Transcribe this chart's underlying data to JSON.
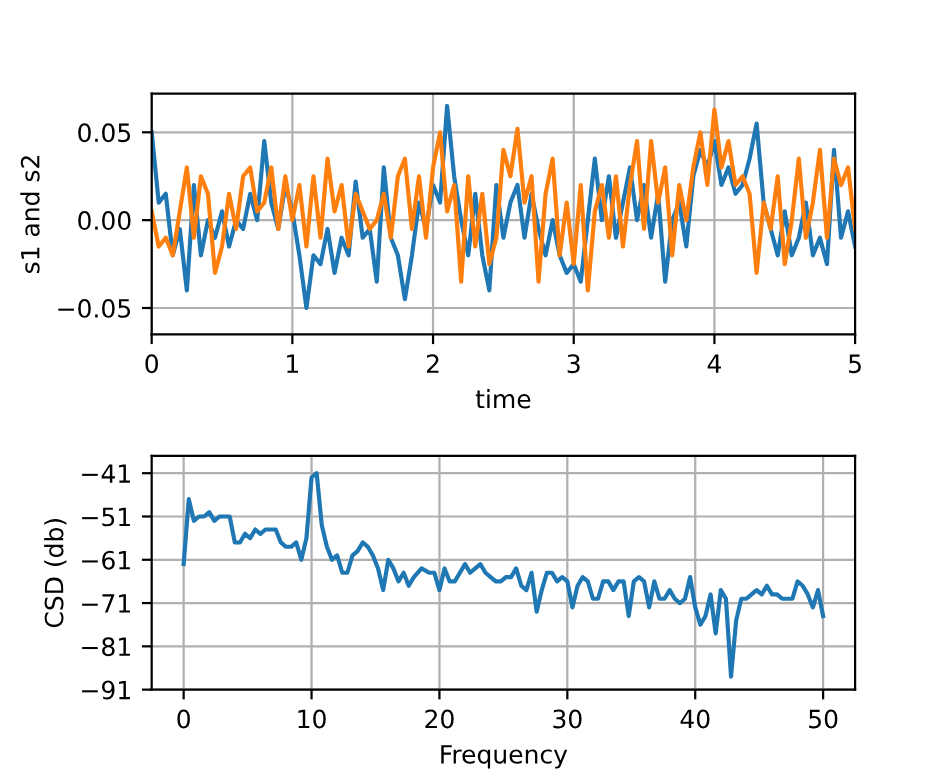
{
  "chart_data": [
    {
      "type": "line",
      "xlabel": "time",
      "ylabel": "s1 and s2",
      "grid": true,
      "xlim": [
        0,
        5
      ],
      "xticks": [
        0,
        1,
        2,
        3,
        4,
        5
      ],
      "ylim": [
        -0.065,
        0.072
      ],
      "yticks": [
        {
          "value": -0.05,
          "label": "−0.05"
        },
        {
          "value": 0,
          "label": "0.00"
        },
        {
          "value": 0.05,
          "label": "0.05"
        }
      ],
      "x": [
        0,
        0.05,
        0.1,
        0.15,
        0.2,
        0.25,
        0.3,
        0.35,
        0.4,
        0.45,
        0.5,
        0.55,
        0.6,
        0.65,
        0.7,
        0.75,
        0.8,
        0.85,
        0.9,
        0.95,
        1.0,
        1.05,
        1.1,
        1.15,
        1.2,
        1.25,
        1.3,
        1.35,
        1.4,
        1.45,
        1.5,
        1.55,
        1.6,
        1.65,
        1.7,
        1.75,
        1.8,
        1.85,
        1.9,
        1.95,
        2.0,
        2.05,
        2.1,
        2.15,
        2.2,
        2.25,
        2.3,
        2.35,
        2.4,
        2.45,
        2.5,
        2.55,
        2.6,
        2.65,
        2.7,
        2.75,
        2.8,
        2.85,
        2.9,
        2.95,
        3.0,
        3.05,
        3.1,
        3.15,
        3.2,
        3.25,
        3.3,
        3.35,
        3.4,
        3.45,
        3.5,
        3.55,
        3.6,
        3.65,
        3.7,
        3.75,
        3.8,
        3.85,
        3.9,
        3.95,
        4.0,
        4.05,
        4.1,
        4.15,
        4.2,
        4.25,
        4.3,
        4.35,
        4.4,
        4.45,
        4.5,
        4.55,
        4.6,
        4.65,
        4.7,
        4.75,
        4.8,
        4.85,
        4.9,
        4.95,
        5.0
      ],
      "series": [
        {
          "color": "#1f77b4",
          "values": [
            0.05,
            0.01,
            0.015,
            -0.02,
            -0.005,
            -0.04,
            0.02,
            -0.02,
            0.0,
            -0.01,
            0.005,
            -0.015,
            0.0,
            -0.005,
            0.015,
            0.0,
            0.045,
            0.01,
            -0.005,
            0.02,
            0.005,
            -0.02,
            -0.05,
            -0.02,
            -0.025,
            -0.005,
            -0.03,
            -0.01,
            -0.02,
            0.022,
            -0.01,
            -0.005,
            -0.035,
            0.03,
            -0.01,
            -0.02,
            -0.045,
            -0.02,
            0.01,
            -0.005,
            0.02,
            0.01,
            0.065,
            0.025,
            0.0,
            -0.02,
            0.015,
            -0.02,
            -0.04,
            0.02,
            -0.01,
            0.01,
            0.02,
            -0.01,
            0.015,
            -0.005,
            -0.02,
            0.0,
            -0.02,
            -0.03,
            -0.025,
            -0.035,
            0.0,
            0.035,
            0.0,
            0.025,
            -0.01,
            0.01,
            0.03,
            0.0,
            0.02,
            -0.01,
            0.015,
            -0.035,
            0.0,
            0.01,
            -0.015,
            0.025,
            0.04,
            0.03,
            0.045,
            0.02,
            0.03,
            0.015,
            0.02,
            0.035,
            0.055,
            0.01,
            -0.005,
            -0.02,
            0.005,
            -0.02,
            -0.01,
            0.01,
            -0.02,
            -0.01,
            -0.025,
            0.04,
            -0.01,
            0.005,
            -0.015
          ]
        },
        {
          "color": "#ff7f0e",
          "values": [
            0.005,
            -0.015,
            -0.01,
            -0.02,
            0.005,
            0.03,
            -0.01,
            0.025,
            0.015,
            -0.03,
            -0.015,
            0.015,
            -0.005,
            0.025,
            0.03,
            0.005,
            0.01,
            0.03,
            -0.005,
            0.025,
            0.0,
            0.02,
            -0.015,
            0.025,
            -0.01,
            0.035,
            0.005,
            0.02,
            -0.015,
            0.015,
            0.005,
            -0.005,
            0.0,
            0.015,
            -0.01,
            0.025,
            0.035,
            -0.005,
            0.025,
            -0.01,
            0.03,
            0.05,
            0.005,
            0.02,
            -0.035,
            0.025,
            -0.015,
            0.015,
            -0.025,
            -0.01,
            0.04,
            0.025,
            0.052,
            0.01,
            0.025,
            -0.035,
            0.015,
            0.035,
            -0.02,
            0.01,
            -0.025,
            0.02,
            -0.04,
            0.005,
            0.02,
            -0.01,
            0.025,
            -0.015,
            0.02,
            0.045,
            -0.005,
            0.045,
            0.01,
            0.03,
            -0.02,
            0.02,
            0.0,
            0.03,
            0.05,
            0.02,
            0.063,
            0.03,
            0.045,
            0.02,
            0.025,
            0.015,
            -0.03,
            0.01,
            -0.005,
            0.025,
            -0.025,
            0.0,
            0.035,
            -0.01,
            0.01,
            0.04,
            -0.01,
            0.035,
            0.02,
            0.03,
            -0.005
          ]
        }
      ]
    },
    {
      "type": "line",
      "xlabel": "Frequency",
      "ylabel": "CSD (db)",
      "grid": true,
      "xlim": [
        -2.5,
        52.5
      ],
      "xticks": [
        0,
        10,
        20,
        30,
        40,
        50
      ],
      "ylim": [
        -91,
        -37
      ],
      "yticks": [
        {
          "value": -91,
          "label": "−91"
        },
        {
          "value": -81,
          "label": "−81"
        },
        {
          "value": -71,
          "label": "−71"
        },
        {
          "value": -61,
          "label": "−61"
        },
        {
          "value": -51,
          "label": "−51"
        },
        {
          "value": -41,
          "label": "−41"
        }
      ],
      "x": [
        0,
        0.4,
        0.8,
        1.2,
        1.6,
        2,
        2.4,
        2.8,
        3.2,
        3.6,
        4,
        4.4,
        4.8,
        5.2,
        5.6,
        6,
        6.4,
        6.8,
        7.2,
        7.6,
        8,
        8.4,
        8.8,
        9.2,
        9.6,
        10,
        10.4,
        10.8,
        11.2,
        11.6,
        12,
        12.4,
        12.8,
        13.2,
        13.6,
        14,
        14.4,
        14.8,
        15.2,
        15.6,
        16,
        16.4,
        16.8,
        17.2,
        17.6,
        18,
        18.6,
        19.2,
        19.6,
        20,
        20.4,
        20.8,
        21.2,
        21.6,
        22,
        22.4,
        22.8,
        23.2,
        23.6,
        24,
        24.4,
        24.8,
        25.2,
        25.6,
        26,
        26.4,
        26.8,
        27.2,
        27.6,
        28,
        28.4,
        28.8,
        29.2,
        29.6,
        30,
        30.4,
        30.8,
        31.2,
        31.6,
        32,
        32.4,
        32.8,
        33.2,
        33.6,
        34,
        34.4,
        34.8,
        35.2,
        35.6,
        36,
        36.4,
        36.8,
        37.2,
        37.6,
        38,
        38.4,
        38.8,
        39.2,
        39.6,
        40,
        40.4,
        40.8,
        41.2,
        41.6,
        42,
        42.4,
        42.8,
        43.2,
        43.6,
        44,
        44.4,
        44.8,
        45.2,
        45.6,
        46,
        46.4,
        46.8,
        47.2,
        47.6,
        48,
        48.4,
        48.8,
        49.2,
        49.6,
        50
      ],
      "series": [
        {
          "color": "#1f77b4",
          "values": [
            -62,
            -47,
            -52,
            -51,
            -51,
            -50,
            -52,
            -51,
            -51,
            -51,
            -57,
            -57,
            -55,
            -56,
            -54,
            -55,
            -54,
            -54,
            -54,
            -57,
            -58,
            -58,
            -57,
            -61,
            -56,
            -42,
            -41,
            -53,
            -58,
            -61,
            -60,
            -64,
            -64,
            -60,
            -59,
            -57,
            -58,
            -60,
            -63,
            -68,
            -61,
            -63,
            -66,
            -64,
            -67,
            -65,
            -63,
            -64,
            -64,
            -68,
            -63,
            -66,
            -66,
            -64,
            -62,
            -64,
            -63,
            -62,
            -64,
            -65,
            -66,
            -66,
            -65,
            -65,
            -63,
            -67,
            -68,
            -64,
            -73,
            -68,
            -64,
            -64,
            -66,
            -65,
            -66,
            -72,
            -67,
            -65,
            -66,
            -70,
            -70,
            -66,
            -66,
            -68,
            -66,
            -66,
            -74,
            -66,
            -65,
            -66,
            -72,
            -66,
            -70,
            -70,
            -68,
            -70,
            -71,
            -70,
            -65,
            -72,
            -76,
            -74,
            -69,
            -78,
            -68,
            -70,
            -88,
            -75,
            -70,
            -70,
            -69,
            -68,
            -69,
            -67,
            -69,
            -69,
            -70,
            -70,
            -70,
            -66,
            -67,
            -69,
            -72,
            -68,
            -74
          ]
        }
      ]
    }
  ]
}
